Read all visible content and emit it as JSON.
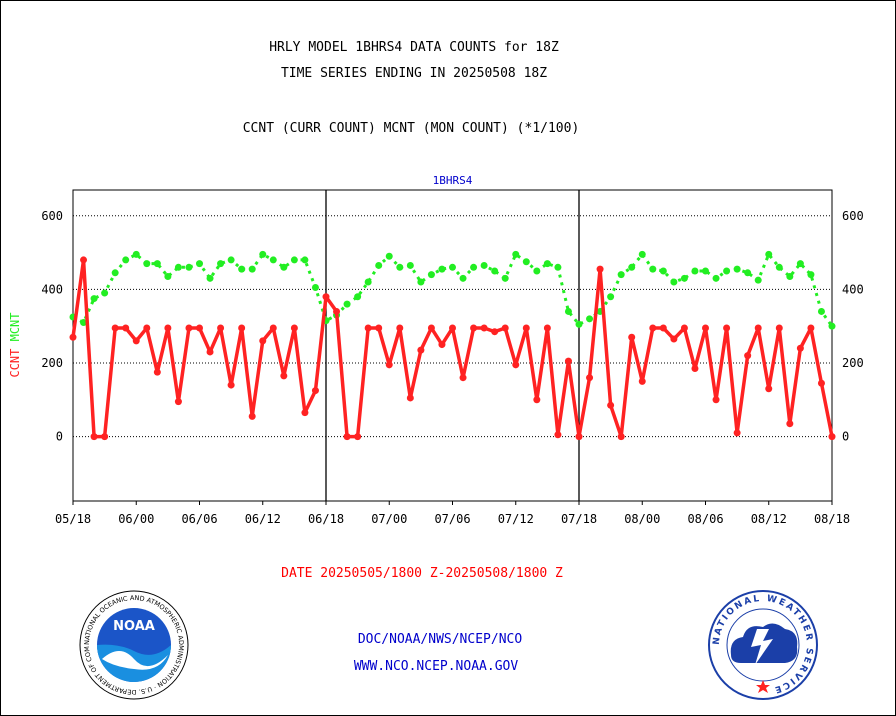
{
  "header": {
    "title_line1": "HRLY MODEL 1BHRS4 DATA COUNTS for 18Z",
    "title_line2": "TIME SERIES ENDING IN 20250508 18Z",
    "subtitle": "CCNT (CURR COUNT) MCNT (MON COUNT) (*1/100)"
  },
  "footer": {
    "date_range": "DATE 20250505/1800 Z-20250508/1800 Z",
    "org_line": "DOC/NOAA/NWS/NCEP/NCO",
    "url_line": "WWW.NCO.NCEP.NOAA.GOV"
  },
  "logos": {
    "noaa_label": "NOAA",
    "noaa_ring_text": "NATIONAL OCEANIC AND ATMOSPHERIC ADMINISTRATION · U.S. DEPARTMENT OF COMMERCE",
    "nws_ring_text": "NATIONAL WEATHER SERVICE"
  },
  "colors": {
    "ccnt": "#ff2222",
    "mcnt": "#22ee22",
    "plot_label": "#0000cc",
    "footer_blue": "#0000cc",
    "footer_red": "#ff0000"
  },
  "chart_data": {
    "type": "line",
    "title": "1BHRS4",
    "ylabel_parts": [
      "CCNT",
      "MCNT"
    ],
    "ylim": [
      -175,
      670
    ],
    "yticks": [
      0,
      200,
      400,
      600
    ],
    "xlim": [
      0,
      72
    ],
    "x_tick_labels": [
      "05/18",
      "06/00",
      "06/06",
      "06/12",
      "06/18",
      "07/00",
      "07/06",
      "07/12",
      "07/18",
      "08/00",
      "08/06",
      "08/12",
      "08/18"
    ],
    "day_boundaries": [
      24,
      48
    ],
    "grid": true,
    "series": [
      {
        "name": "CCNT",
        "values": [
          270,
          480,
          0,
          0,
          295,
          295,
          260,
          295,
          175,
          295,
          95,
          295,
          295,
          230,
          295,
          140,
          295,
          55,
          260,
          295,
          165,
          295,
          65,
          125,
          380,
          340,
          0,
          0,
          295,
          295,
          195,
          295,
          105,
          235,
          295,
          250,
          295,
          160,
          295,
          295,
          285,
          295,
          195,
          295,
          100,
          295,
          5,
          205,
          0,
          160,
          455,
          85,
          0,
          270,
          150,
          295,
          295,
          265,
          295,
          185,
          295,
          100,
          295,
          10,
          220,
          295,
          130,
          295,
          35,
          240,
          295,
          145,
          0
        ]
      },
      {
        "name": "MCNT",
        "values": [
          325,
          310,
          375,
          390,
          445,
          480,
          495,
          470,
          470,
          435,
          460,
          460,
          470,
          430,
          470,
          480,
          455,
          455,
          495,
          480,
          460,
          480,
          480,
          405,
          315,
          330,
          360,
          380,
          420,
          465,
          490,
          460,
          465,
          420,
          440,
          455,
          460,
          430,
          460,
          465,
          450,
          430,
          495,
          475,
          450,
          470,
          460,
          340,
          305,
          320,
          340,
          380,
          440,
          460,
          495,
          455,
          450,
          420,
          430,
          450,
          450,
          430,
          450,
          455,
          445,
          425,
          495,
          460,
          435,
          470,
          440,
          340,
          300
        ]
      }
    ]
  }
}
